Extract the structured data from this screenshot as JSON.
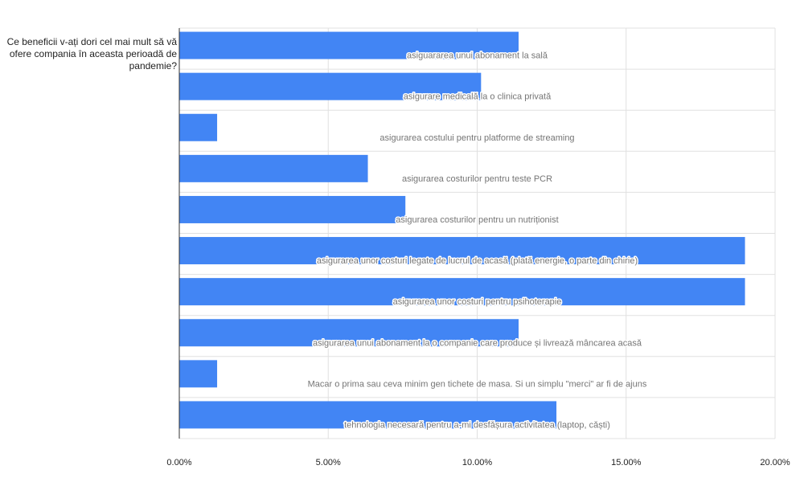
{
  "chart_data": {
    "type": "bar",
    "orientation": "horizontal",
    "title": "Ce beneficii v-ați dori cel mai mult să vă ofere compania în aceasta perioadă de pandemie?",
    "categories": [
      "asiguararea unui abonament la sală",
      "asigurare medicală la o clinica privată",
      "asigurarea costului pentru platforme de streaming",
      "asigurarea costurilor pentru teste PCR",
      "asigurarea costurilor pentru un nutriționist",
      "asigurarea unor costuri legate de lucrul de acasă (plată energie, o parte din chirie)",
      "asigurarea unor costuri pentru psihoterapie",
      "asigurarea unui abonament la o companie care produce și livrează mâncarea acasă",
      "Macar o prima sau ceva minim gen tichete de masa. Si un simplu \"merci\" ar fi de ajuns",
      "tehnologia necesară pentru a-mi desfășura activitatea (laptop, căști)"
    ],
    "values": [
      11.39,
      10.13,
      1.27,
      6.33,
      7.59,
      18.99,
      18.99,
      11.39,
      1.27,
      12.66
    ],
    "xlim": [
      0,
      20
    ],
    "xticks": [
      "0.00%",
      "5.00%",
      "10.00%",
      "15.00%",
      "20.00%"
    ],
    "xlabel": "",
    "ylabel": "",
    "grid": true,
    "legend": "none",
    "bar_color": "#4285f4",
    "grid_color": "#e0e0e0",
    "axis_color": "#333333",
    "label_color": "#757575"
  }
}
